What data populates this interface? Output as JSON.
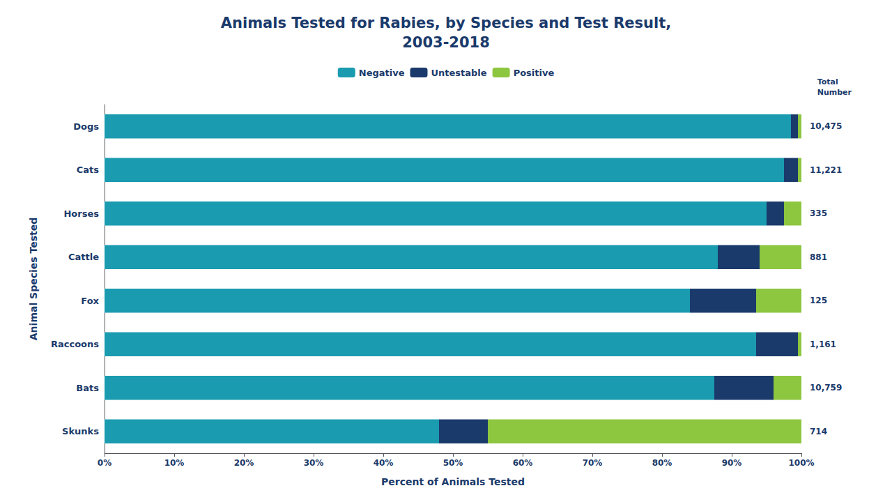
{
  "chart_data": {
    "type": "bar",
    "orientation": "horizontal",
    "stacked": true,
    "title": "Animals Tested for Rabies, by Species and Test Result,\n2003-2018",
    "x_label": "Percent of Animals Tested",
    "y_label": "Animal Species Tested",
    "categories": [
      "Dogs",
      "Cats",
      "Horses",
      "Cattle",
      "Fox",
      "Raccoons",
      "Bats",
      "Skunks"
    ],
    "series": [
      {
        "name": "Negative",
        "color": "#1a9baf",
        "values": [
          98.5,
          97.5,
          95.0,
          88.0,
          84.0,
          93.5,
          87.5,
          48.0
        ]
      },
      {
        "name": "Untestable",
        "color": "#1a3a6b",
        "values": [
          1.0,
          2.0,
          2.5,
          6.0,
          9.5,
          6.0,
          8.5,
          7.0
        ]
      },
      {
        "name": "Positive",
        "color": "#8dc63f",
        "values": [
          0.5,
          0.5,
          2.5,
          6.0,
          6.5,
          0.5,
          4.0,
          45.0
        ]
      }
    ],
    "totals": {
      "title": "Total\nNumber",
      "values": [
        10475,
        11221,
        335,
        881,
        125,
        1161,
        10759,
        714
      ],
      "value_labels": [
        "10,475",
        "11,221",
        "335",
        "881",
        "125",
        "1,161",
        "10,759",
        "714"
      ]
    },
    "xlim": [
      0,
      100
    ],
    "xticks": [
      {
        "value": 0,
        "label": "0%"
      },
      {
        "value": 10,
        "label": "10%"
      },
      {
        "value": 20,
        "label": "20%"
      },
      {
        "value": 30,
        "label": "30%"
      },
      {
        "value": 40,
        "label": "40%"
      },
      {
        "value": 50,
        "label": "50%"
      },
      {
        "value": 60,
        "label": "60%"
      },
      {
        "value": 70,
        "label": "70%"
      },
      {
        "value": 80,
        "label": "80%"
      },
      {
        "value": 90,
        "label": "90%"
      },
      {
        "value": 100,
        "label": "100%"
      }
    ],
    "grid": false,
    "legend": "top"
  }
}
